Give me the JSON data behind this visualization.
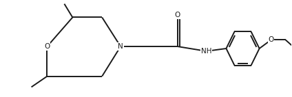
{
  "bg_color": "#ffffff",
  "line_color": "#1a1a1a",
  "line_width": 1.4,
  "font_size": 7.5,
  "figsize": [
    4.24,
    1.42
  ],
  "dpi": 100,
  "xlim": [
    0,
    10
  ],
  "ylim": [
    0,
    3.35
  ]
}
